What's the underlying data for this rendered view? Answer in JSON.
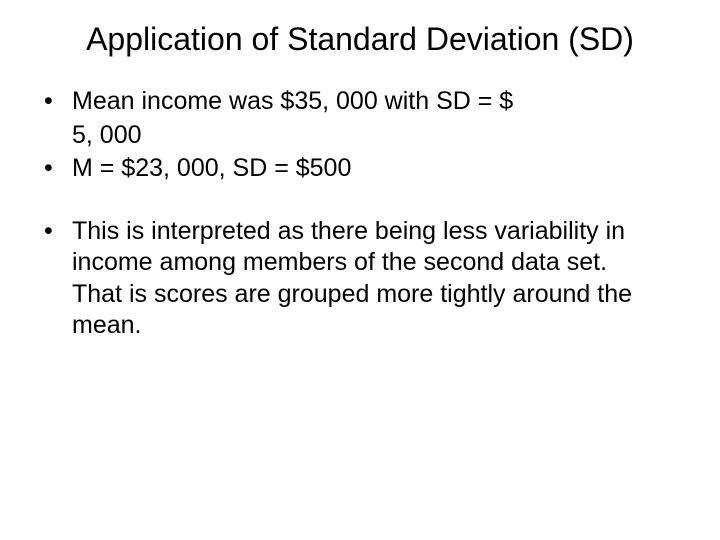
{
  "slide": {
    "title": "Application of Standard Deviation (SD)",
    "group1": {
      "item1_line1": "Mean income was $35, 000 with SD = $",
      "item1_line2": "5, 000",
      "item2": "M = $23, 000, SD = $500"
    },
    "group2": {
      "item1": "This is interpreted as there being less variability in income among members of the second data set. That is scores are grouped more tightly around the mean."
    },
    "style": {
      "background_color": "#ffffff",
      "text_color": "#000000",
      "title_fontsize": 32,
      "body_fontsize": 25,
      "font_family": "Arial"
    }
  }
}
